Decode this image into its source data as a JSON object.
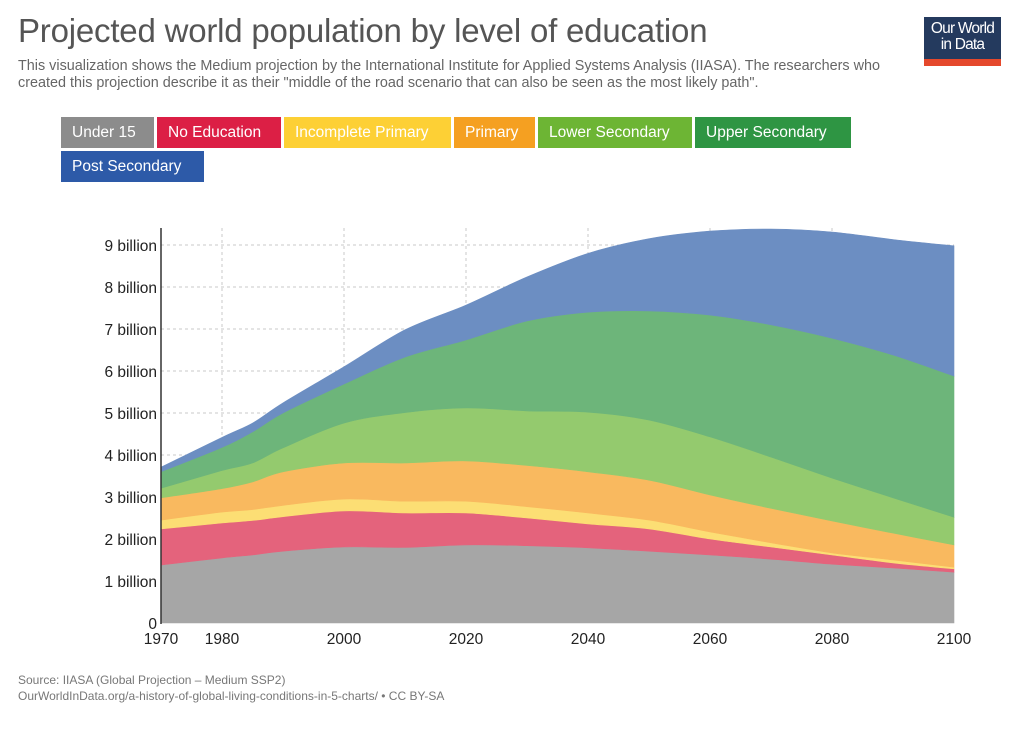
{
  "header": {
    "title": "Projected world population by level of education",
    "subtitle": "This visualization shows the Medium projection by the International Institute for Applied Systems Analysis (IIASA). The researchers who created this projection describe it as their \"middle of the road scenario that can also be seen as the most likely path\"."
  },
  "logo": {
    "line1": "Our World",
    "line2": "in Data"
  },
  "legend": [
    {
      "label": "Under 15",
      "color": "#8c8c8c"
    },
    {
      "label": "No Education",
      "color": "#dc1f45"
    },
    {
      "label": "Incomplete Primary",
      "color": "#fdd035"
    },
    {
      "label": "Primary",
      "color": "#f5a021"
    },
    {
      "label": "Lower Secondary",
      "color": "#6db534"
    },
    {
      "label": "Upper Secondary",
      "color": "#2e9543"
    },
    {
      "label": "Post Secondary",
      "color": "#2d5aa8"
    }
  ],
  "chart_data": {
    "type": "area",
    "stacked": true,
    "title": "Projected world population by level of education",
    "xlabel": "",
    "ylabel": "",
    "xlim": [
      1970,
      2100
    ],
    "ylim": [
      0,
      9.4
    ],
    "x_ticks": [
      1970,
      1980,
      2000,
      2020,
      2040,
      2060,
      2080,
      2100
    ],
    "x_tick_labels": [
      "1970",
      "1980",
      "2000",
      "2020",
      "2040",
      "2060",
      "2080",
      "2100"
    ],
    "y_ticks": [
      0,
      1,
      2,
      3,
      4,
      5,
      6,
      7,
      8,
      9
    ],
    "y_tick_labels": [
      "0",
      "1 billion",
      "2 billion",
      "3 billion",
      "4 billion",
      "5 billion",
      "6 billion",
      "7 billion",
      "8 billion",
      "9 billion"
    ],
    "grid": true,
    "units": "billion people",
    "x": [
      1970,
      1980,
      1985,
      1990,
      2000,
      2010,
      2020,
      2030,
      2040,
      2050,
      2060,
      2070,
      2080,
      2090,
      2100
    ],
    "series": [
      {
        "name": "Under 15",
        "color": "#a6a6a6",
        "values": [
          1.38,
          1.55,
          1.62,
          1.71,
          1.81,
          1.8,
          1.86,
          1.84,
          1.79,
          1.71,
          1.62,
          1.52,
          1.4,
          1.31,
          1.21
        ]
      },
      {
        "name": "No Education",
        "color": "#e4637c",
        "values": [
          0.86,
          0.83,
          0.82,
          0.82,
          0.86,
          0.82,
          0.76,
          0.66,
          0.57,
          0.53,
          0.38,
          0.29,
          0.22,
          0.12,
          0.08
        ]
      },
      {
        "name": "Incomplete Primary",
        "color": "#fcde74",
        "values": [
          0.21,
          0.26,
          0.26,
          0.27,
          0.28,
          0.28,
          0.28,
          0.27,
          0.26,
          0.21,
          0.17,
          0.1,
          0.05,
          0.07,
          0.04
        ]
      },
      {
        "name": "Primary",
        "color": "#f9b95f",
        "values": [
          0.53,
          0.56,
          0.66,
          0.8,
          0.86,
          0.91,
          0.96,
          0.98,
          0.98,
          0.95,
          0.88,
          0.82,
          0.76,
          0.64,
          0.53
        ]
      },
      {
        "name": "Lower Secondary",
        "color": "#94ca6e",
        "values": [
          0.23,
          0.43,
          0.45,
          0.57,
          0.95,
          1.2,
          1.26,
          1.3,
          1.42,
          1.43,
          1.38,
          1.22,
          1.02,
          0.84,
          0.66
        ]
      },
      {
        "name": "Upper Secondary",
        "color": "#6db57a",
        "values": [
          0.39,
          0.55,
          0.74,
          0.83,
          0.93,
          1.32,
          1.62,
          2.14,
          2.38,
          2.6,
          2.9,
          3.15,
          3.33,
          3.4,
          3.36
        ]
      },
      {
        "name": "Post Secondary",
        "color": "#6c8ec2",
        "values": [
          0.11,
          0.24,
          0.21,
          0.24,
          0.41,
          0.65,
          0.83,
          1.05,
          1.4,
          1.72,
          2.0,
          2.28,
          2.53,
          2.75,
          3.1
        ]
      }
    ]
  },
  "footer": {
    "source": "Source: IIASA (Global Projection – Medium SSP2)",
    "url_license": "OurWorldInData.org/a-history-of-global-living-conditions-in-5-charts/ • CC BY-SA"
  }
}
